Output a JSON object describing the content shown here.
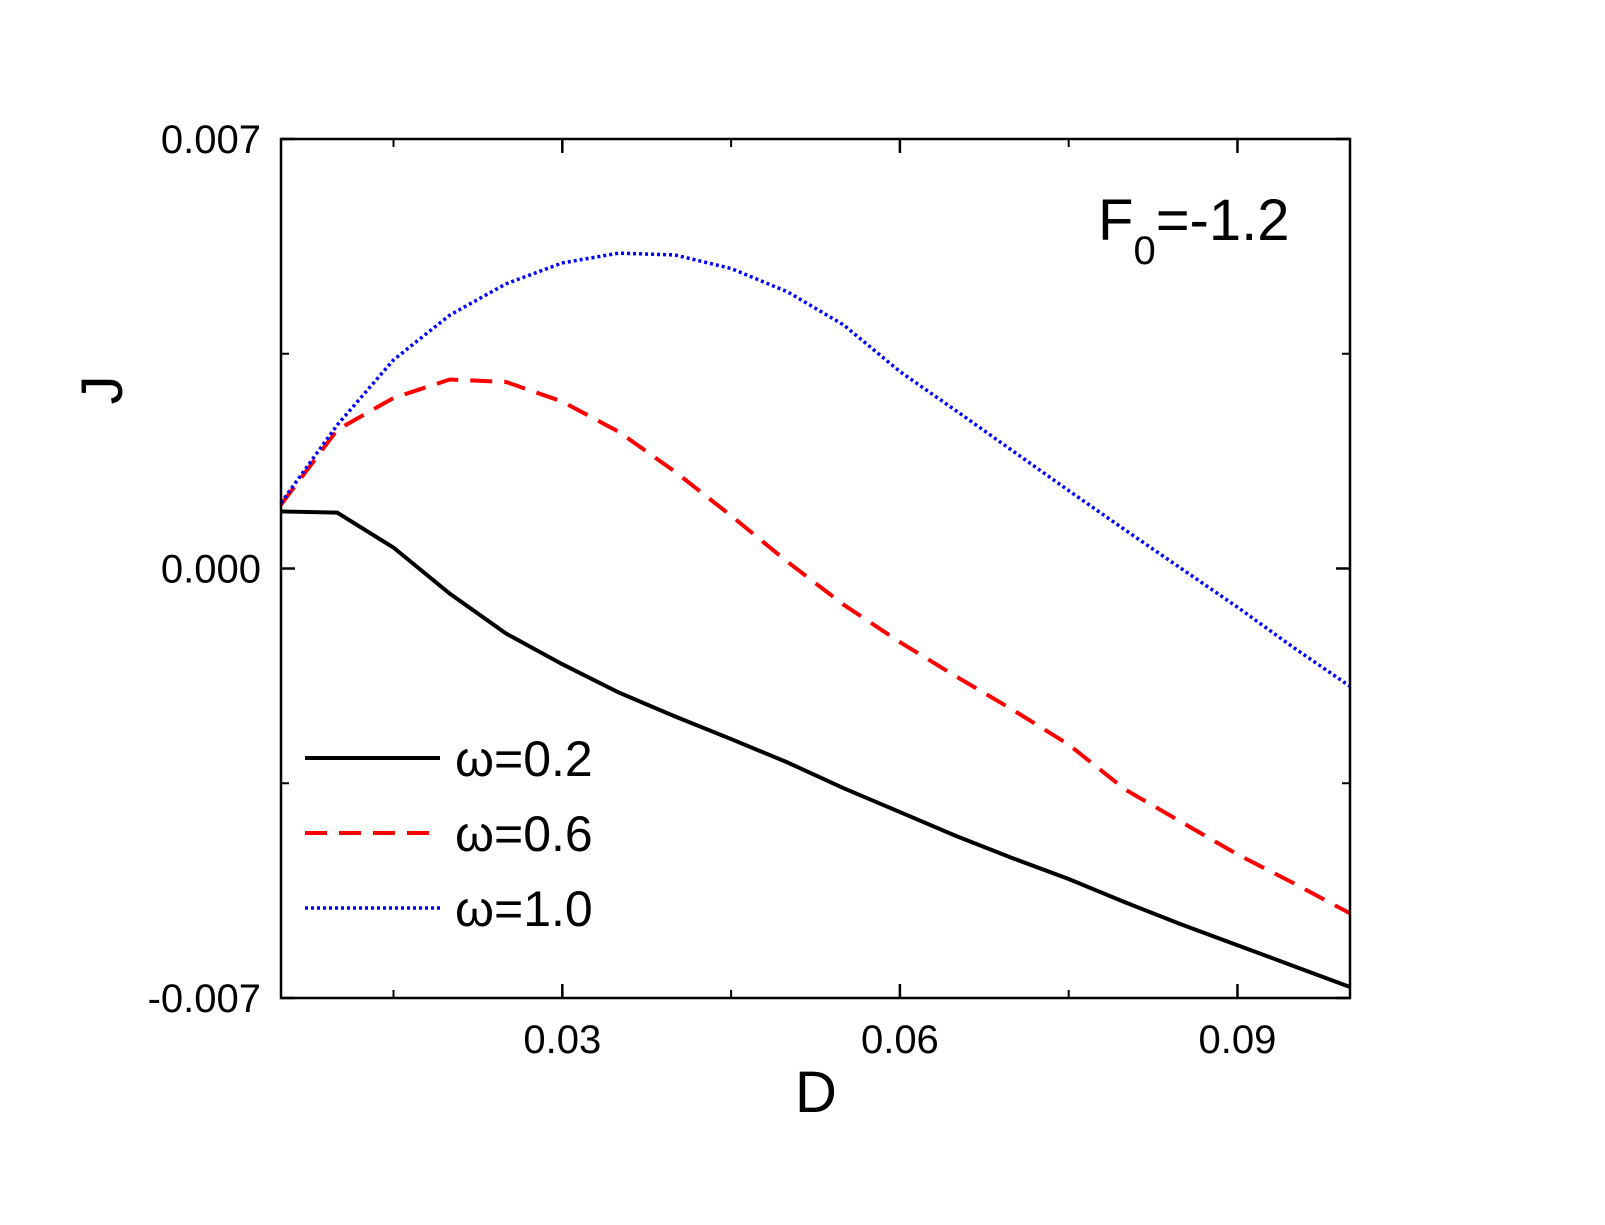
{
  "chart_data": {
    "type": "line",
    "xlabel": "D",
    "ylabel": "J",
    "annotation": {
      "main": "F",
      "subscript": "0",
      "suffix": "=-1.2"
    },
    "x": [
      0.005,
      0.01,
      0.015,
      0.02,
      0.025,
      0.03,
      0.035,
      0.04,
      0.045,
      0.05,
      0.055,
      0.06,
      0.065,
      0.07,
      0.075,
      0.08,
      0.085,
      0.09,
      0.095,
      0.1
    ],
    "series": [
      {
        "name": "ω=0.2",
        "color": "#000000",
        "linestyle": "solid",
        "values": [
          0.00093,
          0.00091,
          0.00034,
          -0.00041,
          -0.00106,
          -0.00156,
          -0.00202,
          -0.00241,
          -0.00278,
          -0.00316,
          -0.00358,
          -0.00397,
          -0.00436,
          -0.00472,
          -0.00506,
          -0.00544,
          -0.0058,
          -0.00614,
          -0.00648,
          -0.00682
        ]
      },
      {
        "name": "ω=0.6",
        "color": "#ff0000",
        "linestyle": "dashed",
        "values": [
          0.00104,
          0.00226,
          0.00278,
          0.00308,
          0.00304,
          0.00272,
          0.00223,
          0.00158,
          0.00086,
          0.00011,
          -0.00059,
          -0.0012,
          -0.00176,
          -0.0023,
          -0.00287,
          -0.0036,
          -0.00413,
          -0.00466,
          -0.00513,
          -0.00562
        ]
      },
      {
        "name": "ω=1.0",
        "color": "#0000ff",
        "linestyle": "dotted",
        "values": [
          0.00107,
          0.00234,
          0.0034,
          0.00413,
          0.00464,
          0.00498,
          0.00514,
          0.00511,
          0.00489,
          0.00451,
          0.00397,
          0.00321,
          0.00257,
          0.00192,
          0.00127,
          0.00063,
          0.0,
          -0.00063,
          -0.00129,
          -0.00192
        ]
      }
    ],
    "xlim": [
      0.005,
      0.1
    ],
    "ylim": [
      -0.007,
      0.007
    ],
    "xticks": [
      0.03,
      0.06,
      0.09
    ],
    "yticks": [
      -0.007,
      {
        "value": 0,
        "label": "0.000"
      },
      0.007
    ],
    "xminorticks": [
      0.015,
      0.045,
      0.075
    ],
    "yminorticks": [
      -0.0035,
      0.0035
    ],
    "legend": "lower left",
    "grid": false
  }
}
